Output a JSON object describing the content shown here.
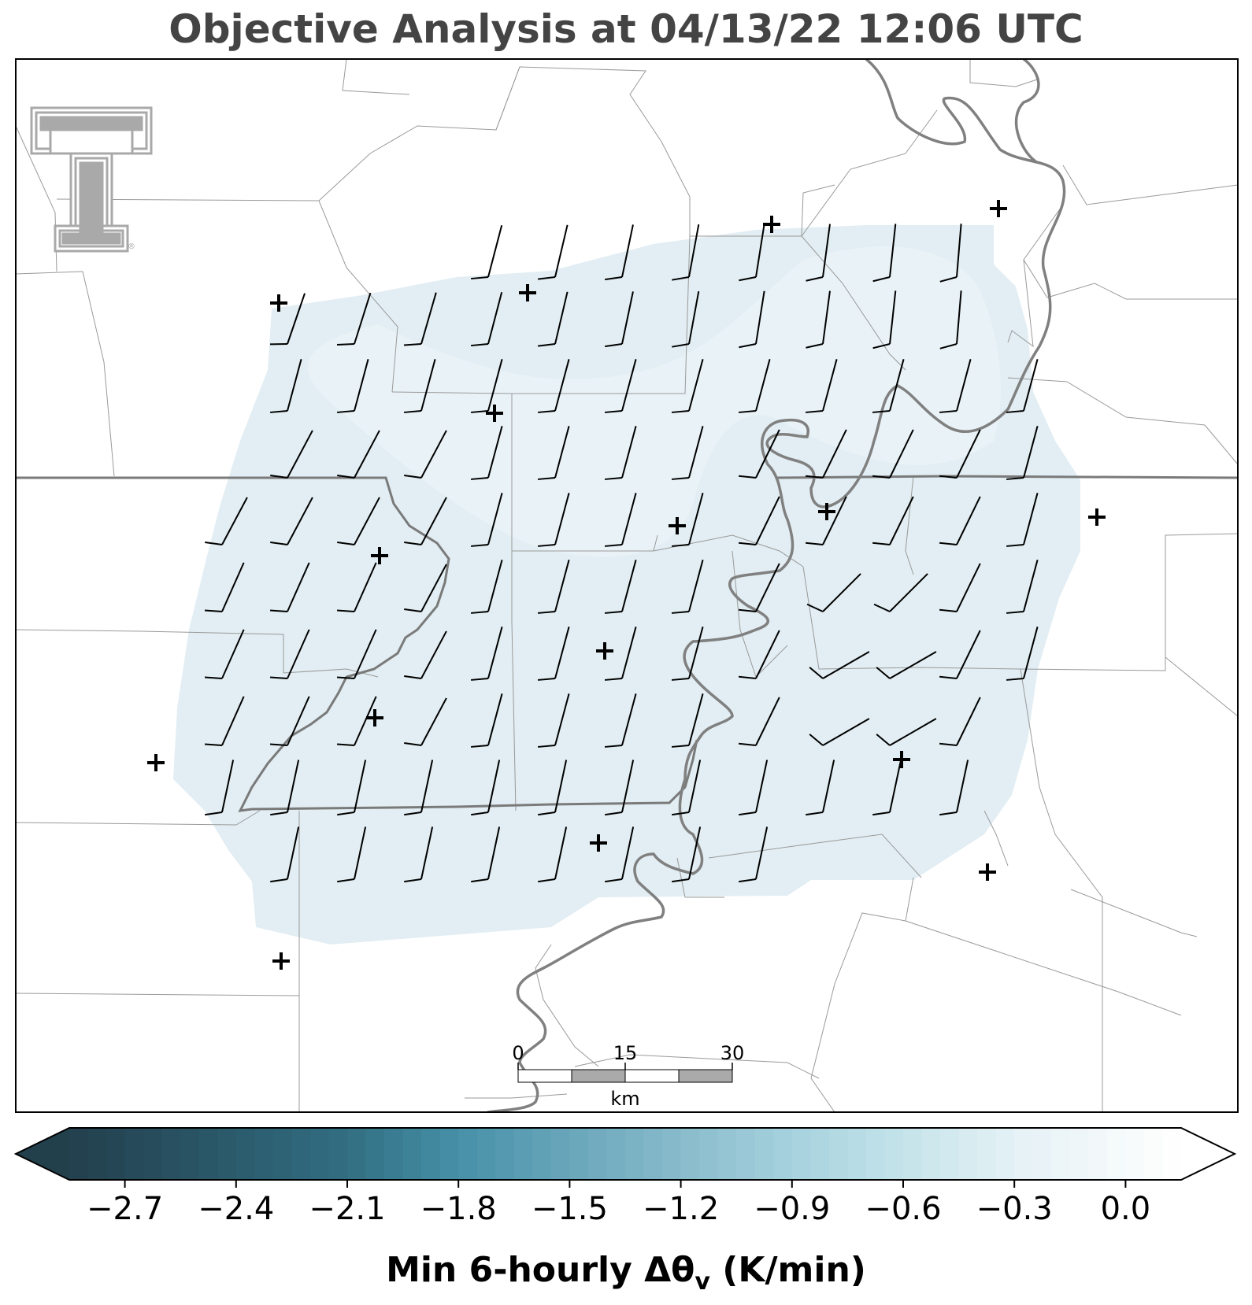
{
  "title": "Objective Analysis at 04/13/22 12:06 UTC",
  "logo": {
    "name": "texas-tech-double-t-logo",
    "registered_mark": "®"
  },
  "colors": {
    "field_fill": "#e2eef3",
    "county_line": "#9a9a9a",
    "state_line": "#7a7a7a",
    "river": "#808080",
    "barb": "#000000",
    "logo": "#a9a9a9"
  },
  "scale_bar": {
    "ticks": [
      "0",
      "15",
      "30"
    ],
    "unit": "km"
  },
  "colorbar": {
    "label_main": "Min 6-hourly Δθ",
    "label_sub": "v",
    "label_units": " (K/min)",
    "min": -2.85,
    "max": 0.15,
    "extend": "both",
    "ticks": [
      "−2.7",
      "−2.4",
      "−2.1",
      "−1.8",
      "−1.5",
      "−1.2",
      "−0.9",
      "−0.6",
      "−0.3",
      "0.0"
    ],
    "tick_values": [
      -2.7,
      -2.4,
      -2.1,
      -1.8,
      -1.5,
      -1.2,
      -0.9,
      -0.6,
      -0.3,
      0.0
    ],
    "color_stops": [
      {
        "v": -2.85,
        "c": "#223f4c"
      },
      {
        "v": -2.1,
        "c": "#326e82"
      },
      {
        "v": -1.8,
        "c": "#4690a8"
      },
      {
        "v": -1.5,
        "c": "#6aa6bb"
      },
      {
        "v": -0.9,
        "c": "#a6d1dd"
      },
      {
        "v": -0.6,
        "c": "#c5e3ea"
      },
      {
        "v": -0.3,
        "c": "#e4f1f5"
      },
      {
        "v": 0.15,
        "c": "#ffffff"
      }
    ]
  },
  "stations_count_note": "",
  "field": {
    "variable": "Min 6-hourly Δθv",
    "value_range": [
      -0.2,
      -0.1
    ]
  }
}
